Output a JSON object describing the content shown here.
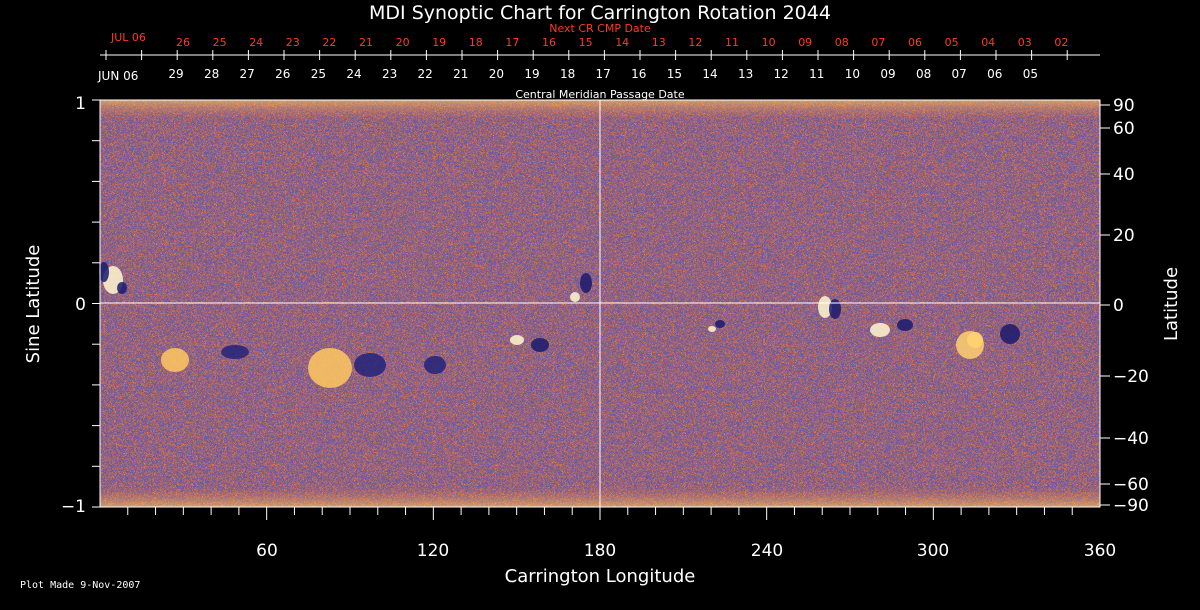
{
  "title": "MDI Synoptic Chart for Carrington Rotation 2044",
  "next_cr_label": "Next CR CMP Date",
  "cmp_label": "Central Meridian Passage Date",
  "x_axis_label": "Carrington Longitude",
  "y_axis_left_label": "Sine Latitude",
  "y_axis_right_label": "Latitude",
  "footer": "Plot Made  9-Nov-2007",
  "top_dates_red": {
    "month_label": "JUL 06",
    "days": [
      "26",
      "25",
      "24",
      "23",
      "22",
      "21",
      "20",
      "19",
      "18",
      "17",
      "16",
      "15",
      "14",
      "13",
      "12",
      "11",
      "10",
      "09",
      "08",
      "07",
      "06",
      "05",
      "04",
      "03",
      "02"
    ]
  },
  "top_dates_white": {
    "month_label": "JUN 06",
    "days": [
      "29",
      "28",
      "27",
      "26",
      "25",
      "24",
      "23",
      "22",
      "21",
      "20",
      "19",
      "18",
      "17",
      "16",
      "15",
      "14",
      "13",
      "12",
      "11",
      "10",
      "09",
      "08",
      "07",
      "06",
      "05"
    ]
  },
  "x_ticks": [
    "60",
    "120",
    "180",
    "240",
    "300",
    "360"
  ],
  "y_left_ticks": [
    "1",
    "0",
    "−1"
  ],
  "y_right_ticks": [
    "90",
    "60",
    "40",
    "20",
    "0",
    "−20",
    "−40",
    "−60",
    "−90"
  ],
  "colors": {
    "background": "#000000",
    "map_base": "#ff4a10",
    "map_bright": "#ffe070",
    "map_dark": "#1a1a70",
    "red_text": "#ff3a1f"
  }
}
